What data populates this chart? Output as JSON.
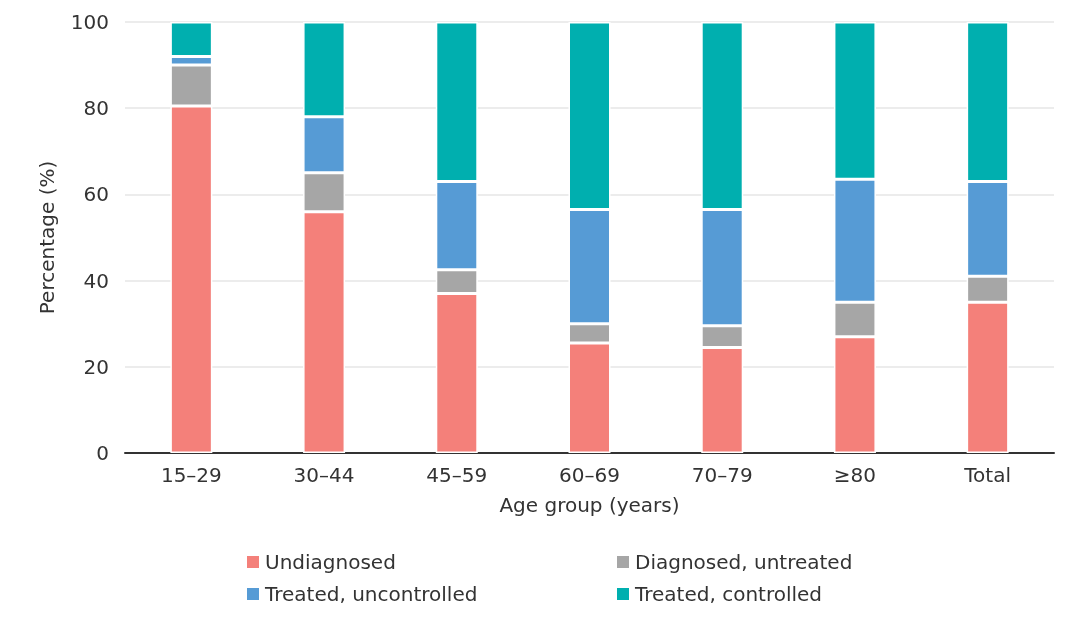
{
  "chart_data": {
    "type": "bar",
    "stacked": true,
    "xlabel": "Age group (years)",
    "ylabel": "Percentage (%)",
    "categories": [
      "15–29",
      "30–44",
      "45–59",
      "60–69",
      "70–79",
      "≥80",
      "Total"
    ],
    "series": [
      {
        "name": "Undiagnosed",
        "color": "#f4807a",
        "values": [
          80.5,
          56,
          37,
          25.5,
          24.5,
          27,
          35
        ]
      },
      {
        "name": "Diagnosed, untreated",
        "color": "#a6a6a6",
        "values": [
          9.5,
          9,
          5.5,
          4.5,
          5,
          8,
          6
        ]
      },
      {
        "name": "Treated, uncontrolled",
        "color": "#569bd5",
        "values": [
          2,
          13,
          20.5,
          26.5,
          27,
          28.5,
          22
        ]
      },
      {
        "name": "Treated, controlled",
        "color": "#00afaf",
        "values": [
          8,
          22,
          37,
          43.5,
          43.5,
          36.5,
          37
        ]
      }
    ],
    "ylim": [
      0,
      100
    ],
    "yticks": [
      0,
      20,
      40,
      60,
      80,
      100
    ],
    "grid": "y",
    "legend": "bottom"
  }
}
